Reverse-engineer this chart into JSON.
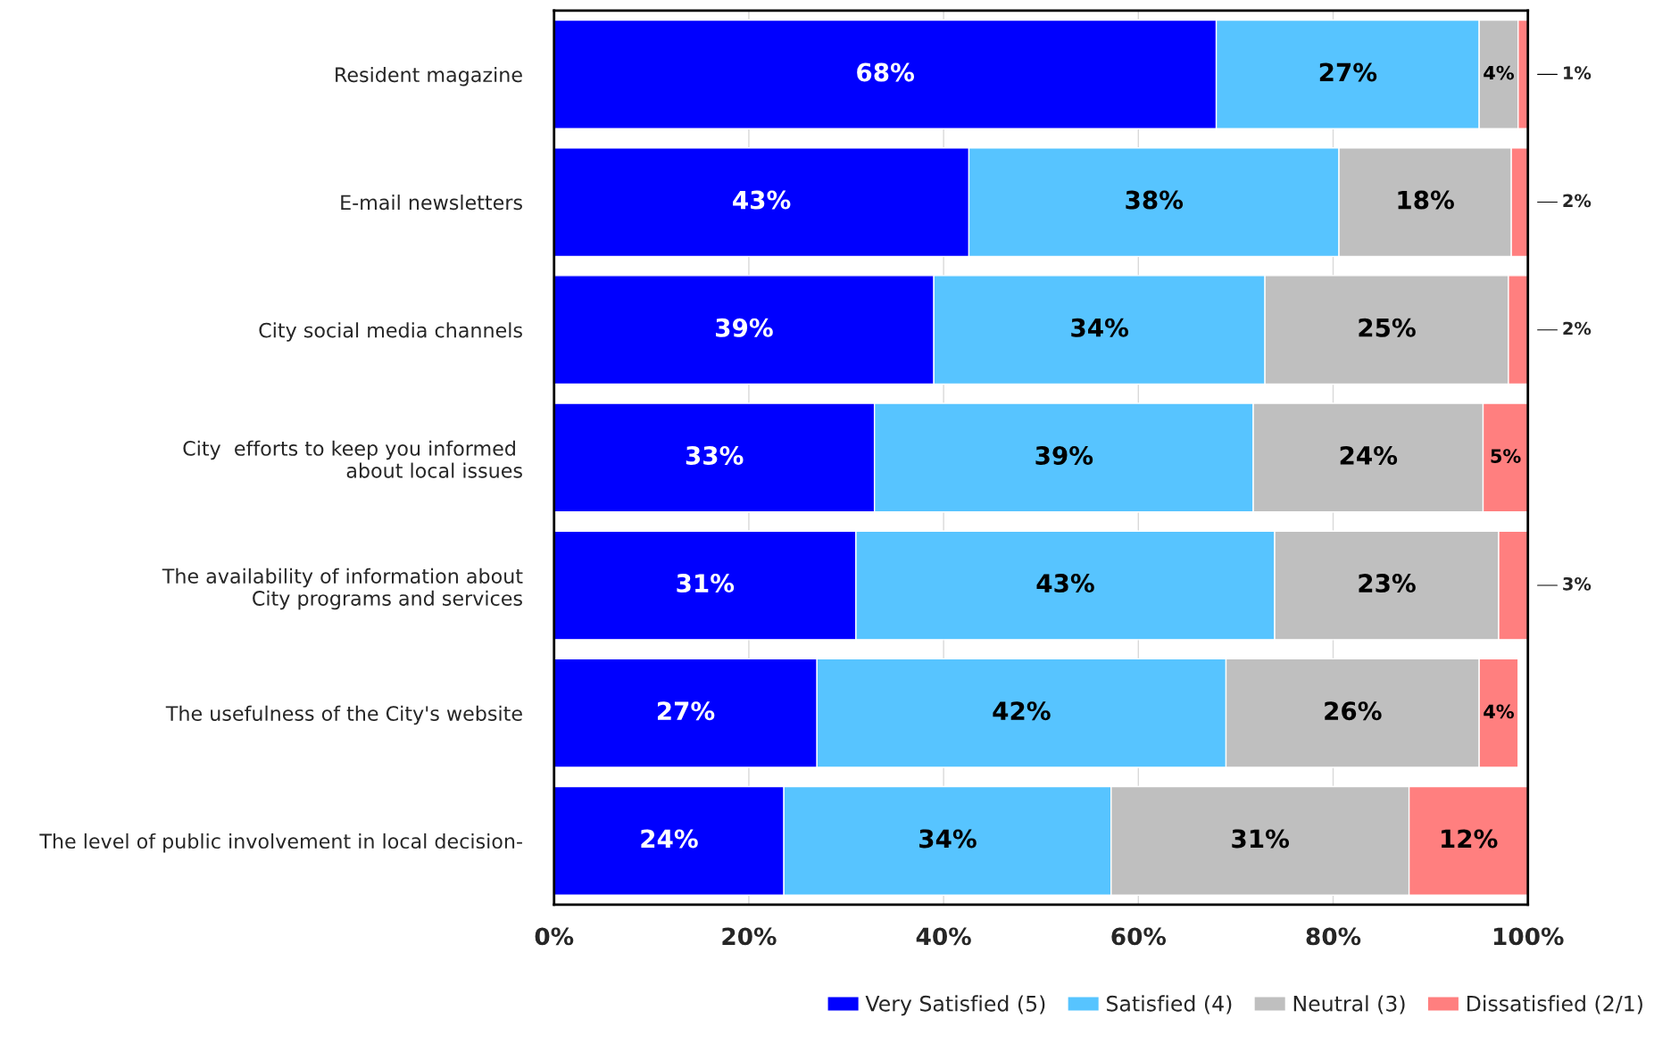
{
  "chart_data": {
    "type": "bar",
    "orientation": "horizontal",
    "stacked": true,
    "categories": [
      "Resident magazine",
      "E-mail newsletters",
      "City social media channels",
      "City  efforts to keep you informed \nabout local issues",
      "The availability of information about\nCity programs and services",
      "The usefulness of the City's website",
      "The level of public involvement in local decision-"
    ],
    "series": [
      {
        "name": "Very Satisfied (5)",
        "color": "#0000ff",
        "values": [
          68,
          42.6,
          39,
          32.9,
          31,
          27,
          23.6
        ],
        "value_labels": [
          "68%",
          "43%",
          "39%",
          "33%",
          "31%",
          "27%",
          "24%"
        ]
      },
      {
        "name": "Satisfied (4)",
        "color": "#57c4ff",
        "values": [
          27,
          38,
          34,
          38.9,
          43,
          42,
          33.6
        ],
        "value_labels": [
          "27%",
          "38%",
          "34%",
          "39%",
          "43%",
          "42%",
          "34%"
        ]
      },
      {
        "name": "Neutral (3)",
        "color": "#bfbfbf",
        "values": [
          4,
          17.7,
          25,
          23.6,
          23,
          26,
          30.6
        ],
        "value_labels": [
          "4%",
          "18%",
          "25%",
          "24%",
          "23%",
          "26%",
          "31%"
        ]
      },
      {
        "name": "Dissatisfied (2/1)",
        "color": "#ff7f7f",
        "values": [
          1,
          1.7,
          2,
          4.6,
          3,
          4,
          12.2
        ],
        "value_labels": [
          "1%",
          "2%",
          "2%",
          "5%",
          "3%",
          "4%",
          "12%"
        ]
      }
    ],
    "xlim": [
      0,
      100
    ],
    "xticks": [
      {
        "value": 0,
        "label": "0%"
      },
      {
        "value": 20,
        "label": "20%"
      },
      {
        "value": 40,
        "label": "40%"
      },
      {
        "value": 60,
        "label": "60%"
      },
      {
        "value": 80,
        "label": "80%"
      },
      {
        "value": 100,
        "label": "100%"
      }
    ],
    "grid": "x",
    "legend": "bottom"
  }
}
